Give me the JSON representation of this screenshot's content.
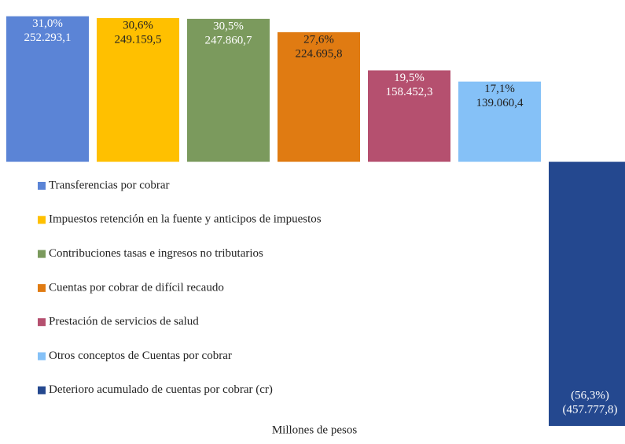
{
  "chart_data": {
    "type": "bar",
    "x_label": "Millones  de pesos",
    "categories": [
      "Transferencias por cobrar",
      "Impuestos retención en la fuente y anticipos de impuestos",
      "Contribuciones tasas e ingresos no tributarios",
      "Cuentas por cobrar de difícil recaudo",
      "Prestación de servicios de salud",
      "Otros conceptos de Cuentas por cobrar",
      "Deterioro acumulado de cuentas por cobrar (cr)"
    ],
    "values": [
      252293.1,
      249159.5,
      247860.7,
      224695.8,
      158452.3,
      139060.4,
      -457777.8
    ],
    "value_labels": [
      "252.293,1",
      "249.159,5",
      "247.860,7",
      "224.695,8",
      "158.452,3",
      "139.060,4",
      "(457.777,8)"
    ],
    "shares": [
      31.0,
      30.6,
      30.5,
      27.6,
      19.5,
      17.1,
      -56.3
    ],
    "share_labels": [
      "31,0%",
      "30,6%",
      "30,5%",
      "27,6%",
      "19,5%",
      "17,1%",
      "(56,3%)"
    ],
    "colors": [
      "#5b84d6",
      "#ffc000",
      "#7b9a5d",
      "#e07b12",
      "#b5506f",
      "#85c1f7",
      "#24488f"
    ],
    "ylim": [
      -470000,
      260000
    ],
    "legend": "left"
  }
}
